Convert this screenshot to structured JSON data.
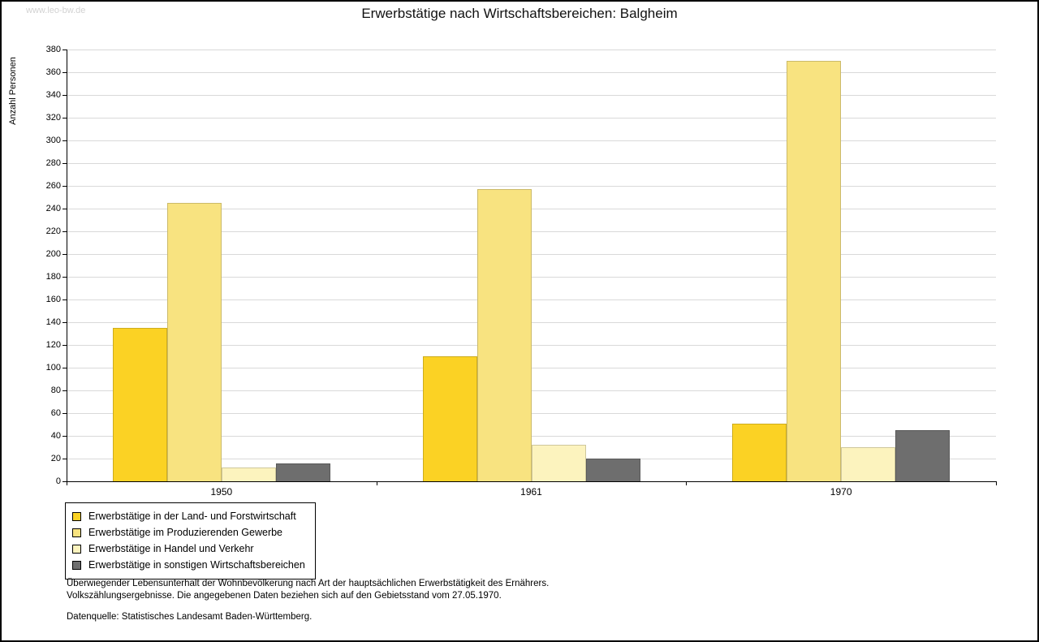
{
  "page": {
    "watermark": "www.leo-bw.de",
    "title": "Erwerbstätige nach Wirtschaftsbereichen: Balgheim",
    "footnotes": [
      "Überwiegender Lebensunterhalt der Wohnbevölkerung nach Art der hauptsächlichen Erwerbstätigkeit des Ernährers.",
      "Volkszählungsergebnisse. Die angegebenen Daten beziehen sich auf den Gebietsstand vom 27.05.1970."
    ],
    "source": "Datenquelle: Statistisches Landesamt Baden-Württemberg."
  },
  "chart_data": {
    "type": "bar",
    "title": "Erwerbstätige nach Wirtschaftsbereichen: Balgheim",
    "xlabel": "",
    "ylabel": "Anzahl Personen",
    "ylim": [
      0,
      380
    ],
    "ytick_step": 20,
    "grid": true,
    "legend_position": "bottom-left",
    "categories": [
      "1950",
      "1961",
      "1970"
    ],
    "series": [
      {
        "name": "Erwerbstätige in der Land- und Forstwirtschaft",
        "color": "#FBD224",
        "values": [
          135,
          110,
          51
        ]
      },
      {
        "name": "Erwerbstätige im Produzierenden Gewerbe",
        "color": "#F8E380",
        "values": [
          245,
          257,
          370
        ]
      },
      {
        "name": "Erwerbstätige in Handel und Verkehr",
        "color": "#FCF3BE",
        "values": [
          12,
          32,
          30
        ]
      },
      {
        "name": "Erwerbstätige in sonstigen Wirtschaftsbereichen",
        "color": "#6E6E6E",
        "values": [
          16,
          20,
          45
        ]
      }
    ]
  }
}
